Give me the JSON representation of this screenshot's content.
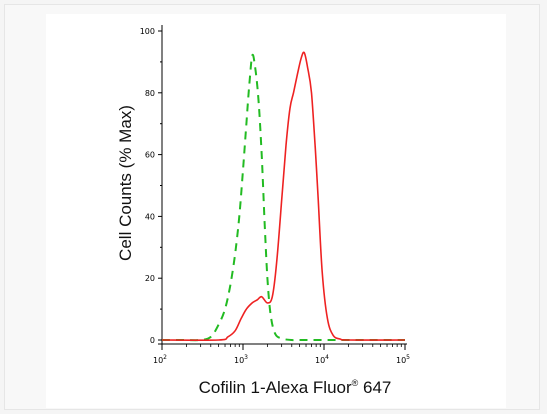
{
  "chart_data": {
    "type": "line",
    "title": "",
    "ylabel": "Cell Counts (% Max)",
    "xlabel": {
      "base": "Cofilin 1-Alexa Fluor",
      "sup": "®",
      "suffix": " 647"
    },
    "x_scale": "log",
    "xlim": [
      100,
      100000
    ],
    "ylim": [
      0,
      100
    ],
    "y_ticks": [
      {
        "value": 0,
        "label": "0"
      },
      {
        "value": 20,
        "label": "20"
      },
      {
        "value": 40,
        "label": "40"
      },
      {
        "value": 60,
        "label": "60"
      },
      {
        "value": 80,
        "label": "80"
      },
      {
        "value": 100,
        "label": "100"
      }
    ],
    "x_ticks": [
      {
        "value": 100,
        "base": "10",
        "exp": "2"
      },
      {
        "value": 1000,
        "base": "10",
        "exp": "3"
      },
      {
        "value": 10000,
        "base": "10",
        "exp": "4"
      },
      {
        "value": 100000,
        "base": "10",
        "exp": "5"
      }
    ],
    "grid": false,
    "series": [
      {
        "color": "#22bb22",
        "dash": "dashed",
        "x": [
          100,
          180,
          300,
          400,
          500,
          600,
          700,
          800,
          900,
          1000,
          1100,
          1200,
          1300,
          1400,
          1550,
          1700,
          1850,
          2000,
          2200,
          2500,
          3000,
          4000,
          6000,
          100000
        ],
        "y": [
          0,
          0,
          0,
          1,
          5,
          10,
          18,
          28,
          40,
          55,
          70,
          83,
          92,
          89,
          78,
          60,
          38,
          20,
          8,
          2,
          0.5,
          0,
          0,
          0
        ]
      },
      {
        "color": "#ee2222",
        "dash": "solid",
        "x": [
          100,
          500,
          650,
          800,
          950,
          1100,
          1300,
          1500,
          1700,
          2000,
          2300,
          2600,
          3000,
          3400,
          3800,
          4200,
          4700,
          5200,
          5700,
          6300,
          7000,
          7800,
          8500,
          9500,
          11000,
          13000,
          16000,
          20000,
          100000
        ],
        "y": [
          0,
          0,
          1,
          3,
          7,
          10,
          12,
          13,
          14,
          12,
          14,
          25,
          45,
          63,
          75,
          80,
          86,
          91,
          93,
          88,
          80,
          62,
          45,
          22,
          7,
          1.5,
          0.3,
          0,
          0
        ]
      }
    ]
  }
}
